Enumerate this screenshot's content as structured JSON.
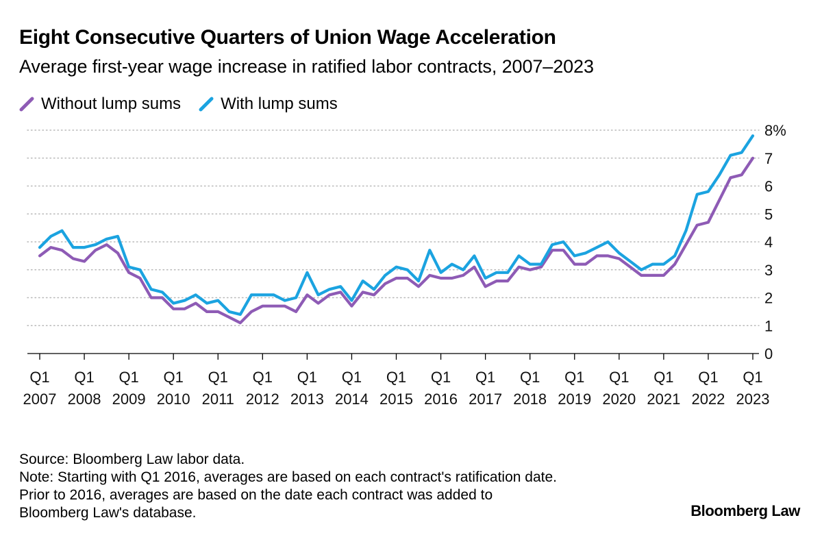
{
  "header": {
    "title": "Eight Consecutive Quarters of Union Wage Acceleration",
    "subtitle": "Average first-year wage increase in ratified labor contracts, 2007–2023"
  },
  "legend": {
    "items": [
      {
        "label": "Without lump sums",
        "color": "#8e5bb5"
      },
      {
        "label": "With lump sums",
        "color": "#1ba3e0"
      }
    ]
  },
  "chart_data": {
    "type": "line",
    "title": "Eight Consecutive Quarters of Union Wage Acceleration",
    "subtitle": "Average first-year wage increase in ratified labor contracts, 2007–2023",
    "xlabel": "",
    "ylabel": "",
    "ylim": [
      0,
      8
    ],
    "y_ticks": [
      "0",
      "1",
      "2",
      "3",
      "4",
      "5",
      "6",
      "7",
      "8%"
    ],
    "x_ticks": [
      [
        "Q1",
        "2007"
      ],
      [
        "Q1",
        "2008"
      ],
      [
        "Q1",
        "2009"
      ],
      [
        "Q1",
        "2010"
      ],
      [
        "Q1",
        "2011"
      ],
      [
        "Q1",
        "2012"
      ],
      [
        "Q1",
        "2013"
      ],
      [
        "Q1",
        "2014"
      ],
      [
        "Q1",
        "2015"
      ],
      [
        "Q1",
        "2016"
      ],
      [
        "Q1",
        "2017"
      ],
      [
        "Q1",
        "2018"
      ],
      [
        "Q1",
        "2019"
      ],
      [
        "Q1",
        "2020"
      ],
      [
        "Q1",
        "2021"
      ],
      [
        "Q1",
        "2022"
      ],
      [
        "Q1",
        "2023"
      ]
    ],
    "x_start": "Q1 2007",
    "frequency": "quarterly",
    "grid": "horizontal dotted",
    "legend_position": "top-left",
    "series": [
      {
        "name": "Without lump sums",
        "color": "#8e5bb5",
        "values": [
          3.5,
          3.8,
          3.7,
          3.4,
          3.3,
          3.7,
          3.9,
          3.6,
          2.9,
          2.7,
          2.0,
          2.0,
          1.6,
          1.6,
          1.8,
          1.5,
          1.5,
          1.3,
          1.1,
          1.5,
          1.7,
          1.7,
          1.7,
          1.5,
          2.1,
          1.8,
          2.1,
          2.2,
          1.7,
          2.2,
          2.1,
          2.5,
          2.7,
          2.7,
          2.4,
          2.8,
          2.7,
          2.7,
          2.8,
          3.1,
          2.4,
          2.6,
          2.6,
          3.1,
          3.0,
          3.1,
          3.7,
          3.7,
          3.2,
          3.2,
          3.5,
          3.5,
          3.4,
          3.1,
          2.8,
          2.8,
          2.8,
          3.2,
          3.9,
          4.6,
          4.7,
          5.5,
          6.3,
          6.4,
          7.0
        ]
      },
      {
        "name": "With lump sums",
        "color": "#1ba3e0",
        "values": [
          3.8,
          4.2,
          4.4,
          3.8,
          3.8,
          3.9,
          4.1,
          4.2,
          3.1,
          3.0,
          2.3,
          2.2,
          1.8,
          1.9,
          2.1,
          1.8,
          1.9,
          1.5,
          1.4,
          2.1,
          2.1,
          2.1,
          1.9,
          2.0,
          2.9,
          2.1,
          2.3,
          2.4,
          1.9,
          2.6,
          2.3,
          2.8,
          3.1,
          3.0,
          2.6,
          3.7,
          2.9,
          3.2,
          3.0,
          3.5,
          2.7,
          2.9,
          2.9,
          3.5,
          3.2,
          3.2,
          3.9,
          4.0,
          3.5,
          3.6,
          3.8,
          4.0,
          3.6,
          3.3,
          3.0,
          3.2,
          3.2,
          3.5,
          4.4,
          5.7,
          5.8,
          6.4,
          7.1,
          7.2,
          7.8
        ]
      }
    ]
  },
  "footer": {
    "source": "Source: Bloomberg Law labor data.",
    "note1": "Note: Starting with Q1 2016, averages are based on each contract's ratification date.",
    "note2": "Prior to 2016, averages are based on the date each contract was added to",
    "note3": "Bloomberg Law's database.",
    "brand": "Bloomberg Law"
  }
}
